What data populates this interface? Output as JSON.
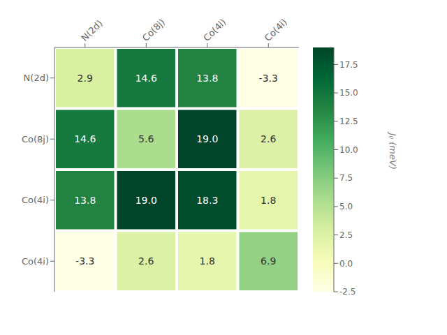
{
  "chart_data": {
    "type": "heatmap",
    "categories": [
      "N(2d)",
      "Co(8j)",
      "Co(4i)",
      "Co(4i)"
    ],
    "values": [
      [
        2.9,
        14.6,
        13.8,
        -3.3
      ],
      [
        14.6,
        5.6,
        19.0,
        2.6
      ],
      [
        13.8,
        19.0,
        18.3,
        1.8
      ],
      [
        -3.3,
        2.6,
        1.8,
        6.9
      ]
    ],
    "value_labels": [
      [
        "2.9",
        "14.6",
        "13.8",
        "-3.3"
      ],
      [
        "14.6",
        "5.6",
        "19.0",
        "2.6"
      ],
      [
        "13.8",
        "19.0",
        "18.3",
        "1.8"
      ],
      [
        "-3.3",
        "2.6",
        "1.8",
        "6.9"
      ]
    ],
    "data_labels": true,
    "colorbar": {
      "label": "Jᵢⱼ (meV)",
      "lim": [
        -2.5,
        19.0
      ],
      "ticks": [
        -2.5,
        {
          "value": 0,
          "label": "0.0"
        },
        2.5,
        {
          "value": 5,
          "label": "5.0"
        },
        7.5,
        {
          "value": 10,
          "label": "10.0"
        },
        12.5,
        {
          "value": 15,
          "label": "15.0"
        },
        17.5
      ],
      "colors": [
        "#ffffe5",
        "#f7fcb9",
        "#d9f0a3",
        "#addd8e",
        "#78c679",
        "#41ab5d",
        "#238443",
        "#006837",
        "#004529"
      ]
    }
  }
}
